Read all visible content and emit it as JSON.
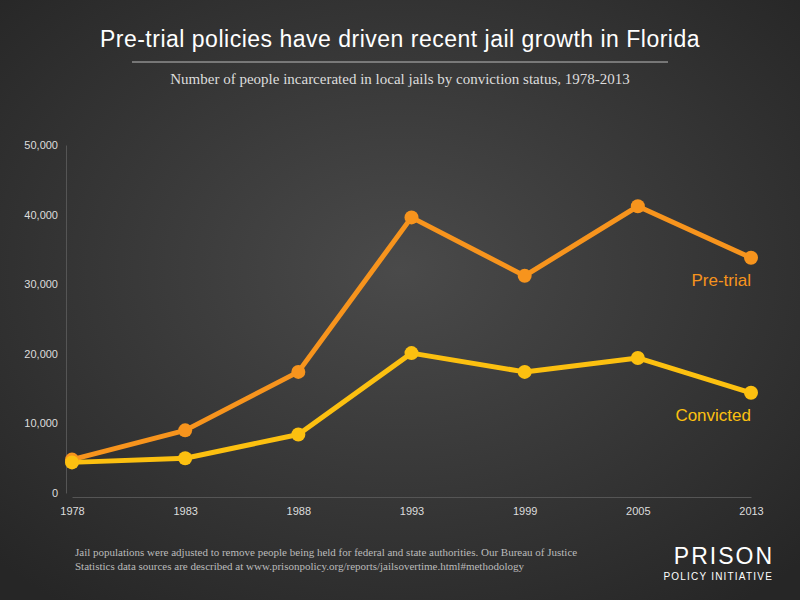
{
  "chart_data": {
    "type": "line",
    "title": "Pre-trial policies have driven recent jail growth in Florida",
    "subtitle": "Number of people incarcerated in local jails by conviction status, 1978-2013",
    "categories": [
      "1978",
      "1983",
      "1988",
      "1993",
      "1999",
      "2005",
      "2013"
    ],
    "series": [
      {
        "name": "Pre-trial",
        "color": "#f7941d",
        "values": [
          4800,
          9000,
          17400,
          39600,
          31200,
          41200,
          33800
        ]
      },
      {
        "name": "Convicted",
        "color": "#fcc010",
        "values": [
          4400,
          5000,
          8400,
          20100,
          17400,
          19400,
          14400
        ]
      }
    ],
    "ylim": [
      0,
      50000
    ],
    "yticks": [
      0,
      {
        "value": 10000,
        "label": "10,000"
      },
      {
        "value": 20000,
        "label": "20,000"
      },
      {
        "value": 30000,
        "label": "30,000"
      },
      {
        "value": 40000,
        "label": "40,000"
      },
      {
        "value": 50000,
        "label": "50,000"
      }
    ],
    "grid": false,
    "marker": "circle",
    "notes": [
      "Jail populations were adjusted to remove people being held for federal and state authorities. Our Bureau of Justice",
      "Statistics data sources are described at www.prisonpolicy.org/reports/jailsovertime.html#methodology"
    ],
    "logo": [
      "PRISON",
      "POLICY INITIATIVE"
    ]
  }
}
